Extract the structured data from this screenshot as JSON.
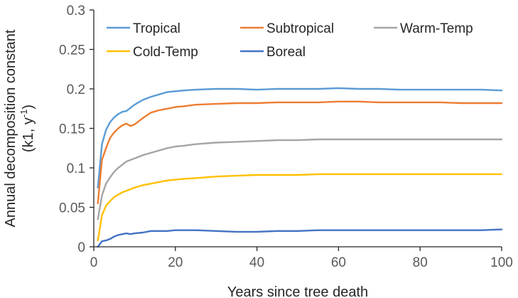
{
  "chart_data": {
    "type": "line",
    "title": "",
    "xlabel": "Years since tree death",
    "ylabel_line1": "Annual decomposition constant",
    "ylabel_line2": {
      "prefix": "(k1, y",
      "sup": "-1",
      "suffix": ")"
    },
    "xlim": [
      0,
      100
    ],
    "ylim": [
      0,
      0.3
    ],
    "x_ticks": [
      0,
      20,
      40,
      60,
      80,
      100
    ],
    "y_ticks": [
      0,
      0.05,
      0.1,
      0.15,
      0.2,
      0.25,
      0.3
    ],
    "x_tick_labels": [
      "0",
      "20",
      "40",
      "60",
      "80",
      "100"
    ],
    "y_tick_labels": [
      "0",
      "0.05",
      "0.1",
      "0.15",
      "0.2",
      "0.25",
      "0.3"
    ],
    "grid": false,
    "legend_position": "top",
    "series": [
      {
        "name": "Tropical",
        "color": "#5B9BD5",
        "x": [
          1,
          2,
          3,
          4,
          5,
          6,
          7,
          8,
          9,
          10,
          12,
          14,
          16,
          18,
          20,
          22,
          25,
          30,
          35,
          40,
          45,
          50,
          55,
          60,
          65,
          70,
          75,
          80,
          85,
          90,
          95,
          100
        ],
        "y": [
          0.075,
          0.13,
          0.148,
          0.158,
          0.164,
          0.168,
          0.171,
          0.172,
          0.176,
          0.18,
          0.186,
          0.19,
          0.193,
          0.196,
          0.197,
          0.198,
          0.199,
          0.2,
          0.2,
          0.199,
          0.2,
          0.2,
          0.2,
          0.201,
          0.2,
          0.2,
          0.199,
          0.199,
          0.199,
          0.199,
          0.199,
          0.198
        ]
      },
      {
        "name": "Subtropical",
        "color": "#ED7D31",
        "x": [
          1,
          2,
          3,
          4,
          5,
          6,
          7,
          8,
          9,
          10,
          12,
          14,
          16,
          18,
          20,
          22,
          25,
          30,
          35,
          40,
          45,
          50,
          55,
          60,
          65,
          70,
          75,
          80,
          85,
          90,
          95,
          100
        ],
        "y": [
          0.055,
          0.11,
          0.125,
          0.138,
          0.145,
          0.15,
          0.154,
          0.156,
          0.153,
          0.155,
          0.163,
          0.17,
          0.173,
          0.175,
          0.177,
          0.178,
          0.18,
          0.181,
          0.182,
          0.182,
          0.183,
          0.183,
          0.183,
          0.184,
          0.184,
          0.183,
          0.183,
          0.183,
          0.183,
          0.182,
          0.182,
          0.182
        ]
      },
      {
        "name": "Warm-Temp",
        "color": "#A5A5A5",
        "x": [
          1,
          2,
          3,
          4,
          5,
          6,
          7,
          8,
          9,
          10,
          12,
          14,
          16,
          18,
          20,
          22,
          25,
          30,
          35,
          40,
          45,
          50,
          55,
          60,
          65,
          70,
          75,
          80,
          85,
          90,
          95,
          100
        ],
        "y": [
          0.035,
          0.065,
          0.08,
          0.088,
          0.095,
          0.1,
          0.104,
          0.108,
          0.11,
          0.112,
          0.116,
          0.119,
          0.122,
          0.125,
          0.127,
          0.128,
          0.13,
          0.132,
          0.133,
          0.134,
          0.135,
          0.135,
          0.136,
          0.136,
          0.136,
          0.136,
          0.136,
          0.136,
          0.136,
          0.136,
          0.136,
          0.136
        ]
      },
      {
        "name": "Cold-Temp",
        "color": "#FFC000",
        "x": [
          1,
          2,
          3,
          4,
          5,
          6,
          7,
          8,
          9,
          10,
          12,
          14,
          16,
          18,
          20,
          22,
          25,
          30,
          35,
          40,
          45,
          50,
          55,
          60,
          65,
          70,
          75,
          80,
          85,
          90,
          95,
          100
        ],
        "y": [
          0.008,
          0.04,
          0.052,
          0.058,
          0.063,
          0.066,
          0.069,
          0.071,
          0.073,
          0.075,
          0.078,
          0.08,
          0.082,
          0.084,
          0.085,
          0.086,
          0.087,
          0.089,
          0.09,
          0.091,
          0.091,
          0.091,
          0.092,
          0.092,
          0.092,
          0.092,
          0.092,
          0.092,
          0.092,
          0.092,
          0.092,
          0.092
        ]
      },
      {
        "name": "Boreal",
        "color": "#4472C4",
        "x": [
          1,
          2,
          3,
          4,
          5,
          6,
          7,
          8,
          9,
          10,
          12,
          14,
          16,
          18,
          20,
          22,
          25,
          30,
          35,
          40,
          45,
          50,
          55,
          60,
          65,
          70,
          75,
          80,
          85,
          90,
          95,
          100
        ],
        "y": [
          0.0,
          0.007,
          0.008,
          0.01,
          0.013,
          0.015,
          0.016,
          0.017,
          0.016,
          0.017,
          0.018,
          0.02,
          0.02,
          0.02,
          0.021,
          0.021,
          0.021,
          0.02,
          0.019,
          0.019,
          0.02,
          0.02,
          0.021,
          0.021,
          0.021,
          0.021,
          0.021,
          0.021,
          0.021,
          0.021,
          0.021,
          0.022
        ]
      }
    ]
  }
}
